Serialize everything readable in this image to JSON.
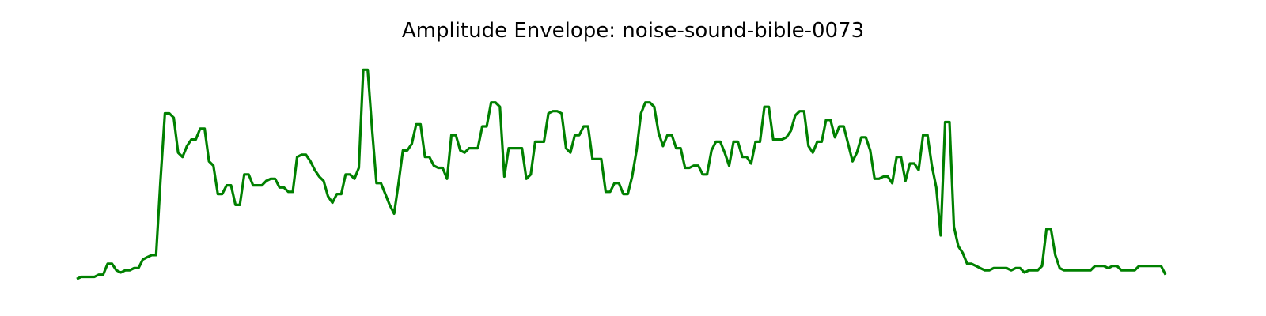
{
  "chart_data": {
    "type": "line",
    "title": "Amplitude Envelope: noise-sound-bible-0073",
    "xlabel": "",
    "ylabel": "",
    "axes_visible": false,
    "grid": false,
    "ylim": [
      0,
      1
    ],
    "color": "#008000",
    "values": [
      0.01,
      0.02,
      0.02,
      0.02,
      0.02,
      0.03,
      0.03,
      0.08,
      0.08,
      0.05,
      0.04,
      0.05,
      0.05,
      0.06,
      0.06,
      0.1,
      0.11,
      0.12,
      0.12,
      0.46,
      0.77,
      0.77,
      0.75,
      0.59,
      0.57,
      0.62,
      0.65,
      0.65,
      0.7,
      0.7,
      0.55,
      0.53,
      0.4,
      0.4,
      0.44,
      0.44,
      0.35,
      0.35,
      0.49,
      0.49,
      0.44,
      0.44,
      0.44,
      0.46,
      0.47,
      0.47,
      0.43,
      0.43,
      0.41,
      0.41,
      0.57,
      0.58,
      0.58,
      0.55,
      0.51,
      0.48,
      0.46,
      0.39,
      0.36,
      0.4,
      0.4,
      0.49,
      0.49,
      0.47,
      0.52,
      0.97,
      0.97,
      0.7,
      0.45,
      0.45,
      0.4,
      0.35,
      0.31,
      0.45,
      0.6,
      0.6,
      0.63,
      0.72,
      0.72,
      0.57,
      0.57,
      0.53,
      0.52,
      0.52,
      0.47,
      0.67,
      0.67,
      0.6,
      0.59,
      0.61,
      0.61,
      0.61,
      0.71,
      0.71,
      0.82,
      0.82,
      0.8,
      0.48,
      0.61,
      0.61,
      0.61,
      0.61,
      0.47,
      0.49,
      0.64,
      0.64,
      0.64,
      0.77,
      0.78,
      0.78,
      0.77,
      0.61,
      0.59,
      0.67,
      0.67,
      0.71,
      0.71,
      0.56,
      0.56,
      0.56,
      0.41,
      0.41,
      0.45,
      0.45,
      0.4,
      0.4,
      0.48,
      0.6,
      0.77,
      0.82,
      0.82,
      0.8,
      0.68,
      0.62,
      0.67,
      0.67,
      0.61,
      0.61,
      0.52,
      0.52,
      0.53,
      0.53,
      0.49,
      0.49,
      0.6,
      0.64,
      0.64,
      0.59,
      0.53,
      0.64,
      0.64,
      0.57,
      0.57,
      0.54,
      0.64,
      0.64,
      0.8,
      0.8,
      0.65,
      0.65,
      0.65,
      0.66,
      0.69,
      0.76,
      0.78,
      0.78,
      0.62,
      0.59,
      0.64,
      0.64,
      0.74,
      0.74,
      0.66,
      0.71,
      0.71,
      0.63,
      0.55,
      0.59,
      0.66,
      0.66,
      0.6,
      0.47,
      0.47,
      0.48,
      0.48,
      0.45,
      0.57,
      0.57,
      0.46,
      0.54,
      0.54,
      0.51,
      0.67,
      0.67,
      0.53,
      0.43,
      0.21,
      0.73,
      0.73,
      0.25,
      0.16,
      0.13,
      0.08,
      0.08,
      0.07,
      0.06,
      0.05,
      0.05,
      0.06,
      0.06,
      0.06,
      0.06,
      0.05,
      0.06,
      0.06,
      0.04,
      0.05,
      0.05,
      0.05,
      0.07,
      0.24,
      0.24,
      0.12,
      0.06,
      0.05,
      0.05,
      0.05,
      0.05,
      0.05,
      0.05,
      0.05,
      0.07,
      0.07,
      0.07,
      0.06,
      0.07,
      0.07,
      0.05,
      0.05,
      0.05,
      0.05,
      0.07,
      0.07,
      0.07,
      0.07,
      0.07,
      0.07,
      0.03
    ]
  }
}
